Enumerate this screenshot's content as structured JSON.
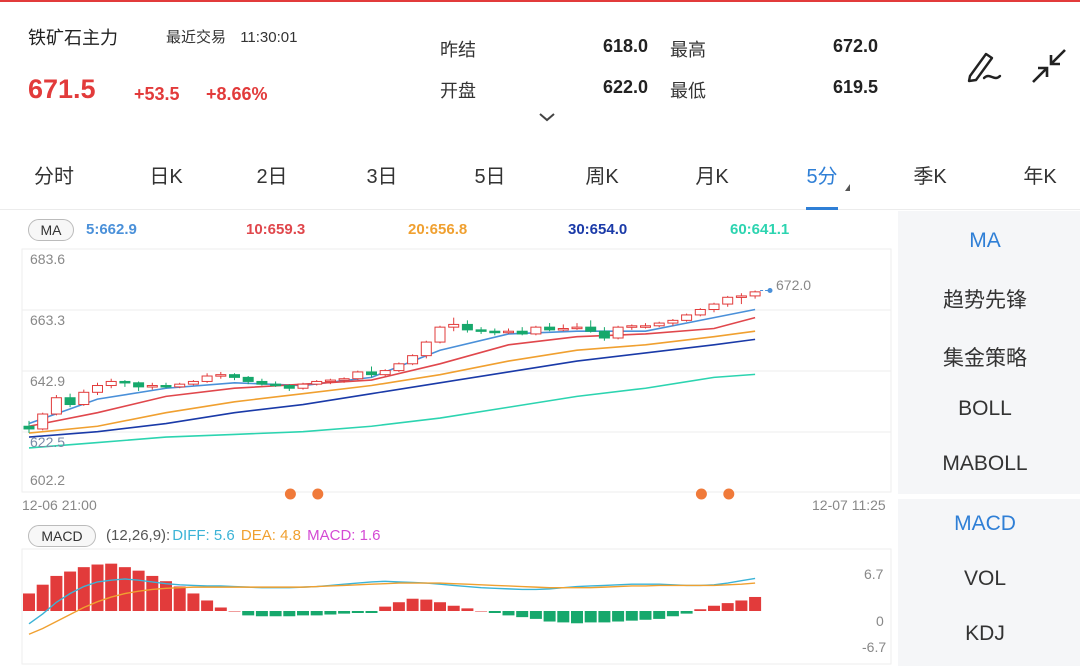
{
  "header": {
    "title": "铁矿石主力",
    "recent_label": "最近交易",
    "time": "11:30:01",
    "price": "671.5",
    "change": "+53.5",
    "change_pct": "+8.66%",
    "stats": {
      "prev_settle_label": "昨结",
      "prev_settle": "618.0",
      "open_label": "开盘",
      "open": "622.0",
      "high_label": "最高",
      "high": "672.0",
      "low_label": "最低",
      "low": "619.5"
    }
  },
  "tabs": [
    "分时",
    "日K",
    "2日",
    "3日",
    "5日",
    "周K",
    "月K",
    "5分",
    "季K",
    "年K"
  ],
  "active_tab": "5分",
  "indicator_panel": {
    "main": [
      "MA",
      "趋势先锋",
      "集金策略",
      "BOLL",
      "MABOLL"
    ],
    "sub": [
      "MACD",
      "VOL",
      "KDJ"
    ],
    "active_main": "MA",
    "active_sub": "MACD"
  },
  "ma_legend": {
    "badge": "MA",
    "ma5": "5:662.9",
    "ma10": "10:659.3",
    "ma20": "20:656.8",
    "ma30": "30:654.0",
    "ma60": "60:641.1"
  },
  "colors": {
    "up": "#e23b3b",
    "down": "#16a86c",
    "ma5": "#4a90d9",
    "ma10": "#e0474c",
    "ma20": "#f0a030",
    "ma30": "#1a3aa8",
    "ma60": "#2cd4b0",
    "accent": "#2f7fd6"
  },
  "price_axis": {
    "ticks": [
      "683.6",
      "663.3",
      "642.9",
      "602.2"
    ],
    "overlap_label": "622.5",
    "last_label": "672.0",
    "time_start": "12-06 21:00",
    "time_end": "12-07 11:25"
  },
  "macd": {
    "badge": "MACD",
    "params": "(12,26,9):",
    "diff": "DIFF: 5.6",
    "dea": "DEA: 4.8",
    "macd": "MACD: 1.6",
    "axis": [
      "6.7",
      "0",
      "-6.7"
    ]
  },
  "chart_data": {
    "type": "candlestick",
    "interval": "5分",
    "candles": [
      [
        622.0,
        624.0,
        619.5,
        621.0
      ],
      [
        621.0,
        627.0,
        620.5,
        626.5
      ],
      [
        626.5,
        633.5,
        626.0,
        632.5
      ],
      [
        632.5,
        634.0,
        629.0,
        630.0
      ],
      [
        630.0,
        635.5,
        629.5,
        634.5
      ],
      [
        634.5,
        638.0,
        633.5,
        637.0
      ],
      [
        637.0,
        639.5,
        636.0,
        638.5
      ],
      [
        638.5,
        639.0,
        636.5,
        638.0
      ],
      [
        638.0,
        638.5,
        635.0,
        636.5
      ],
      [
        636.5,
        638.0,
        635.5,
        637.0
      ],
      [
        637.0,
        638.0,
        636.0,
        636.5
      ],
      [
        636.5,
        638.0,
        636.0,
        637.5
      ],
      [
        637.5,
        639.0,
        637.0,
        638.5
      ],
      [
        638.5,
        641.5,
        638.0,
        640.5
      ],
      [
        640.5,
        642.0,
        639.5,
        641.0
      ],
      [
        641.0,
        641.5,
        639.0,
        640.0
      ],
      [
        640.0,
        640.5,
        637.5,
        638.5
      ],
      [
        638.5,
        639.5,
        637.0,
        637.5
      ],
      [
        637.5,
        638.5,
        636.5,
        637.0
      ],
      [
        637.0,
        637.5,
        635.0,
        636.0
      ],
      [
        636.0,
        638.0,
        635.5,
        637.5
      ],
      [
        637.5,
        639.0,
        637.0,
        638.5
      ],
      [
        638.5,
        639.5,
        637.5,
        639.0
      ],
      [
        639.0,
        640.0,
        638.0,
        639.5
      ],
      [
        639.5,
        642.5,
        639.0,
        642.0
      ],
      [
        642.0,
        644.0,
        640.0,
        641.0
      ],
      [
        641.0,
        643.0,
        640.5,
        642.5
      ],
      [
        642.5,
        645.5,
        642.0,
        645.0
      ],
      [
        645.0,
        648.5,
        644.5,
        648.0
      ],
      [
        648.0,
        653.5,
        647.0,
        653.0
      ],
      [
        653.0,
        659.0,
        652.5,
        658.5
      ],
      [
        658.5,
        662.0,
        657.0,
        659.5
      ],
      [
        659.5,
        661.0,
        656.5,
        657.5
      ],
      [
        657.5,
        658.5,
        656.0,
        657.0
      ],
      [
        657.0,
        658.0,
        655.5,
        656.5
      ],
      [
        656.5,
        658.0,
        656.0,
        657.0
      ],
      [
        657.0,
        658.5,
        655.5,
        656.0
      ],
      [
        656.0,
        659.0,
        655.5,
        658.5
      ],
      [
        658.5,
        660.0,
        657.0,
        657.5
      ],
      [
        657.5,
        659.5,
        657.0,
        658.0
      ],
      [
        658.0,
        660.0,
        657.5,
        658.5
      ],
      [
        658.5,
        661.0,
        656.5,
        657.0
      ],
      [
        657.0,
        658.5,
        653.5,
        654.5
      ],
      [
        654.5,
        659.0,
        654.0,
        658.5
      ],
      [
        658.5,
        659.5,
        657.5,
        659.0
      ],
      [
        659.0,
        660.0,
        658.0,
        659.0
      ],
      [
        659.0,
        660.5,
        658.5,
        660.0
      ],
      [
        660.0,
        661.5,
        659.0,
        661.0
      ],
      [
        661.0,
        663.5,
        660.5,
        663.0
      ],
      [
        663.0,
        665.5,
        662.5,
        665.0
      ],
      [
        665.0,
        667.5,
        664.0,
        667.0
      ],
      [
        667.0,
        670.0,
        666.0,
        669.5
      ],
      [
        669.5,
        671.0,
        667.0,
        670.0
      ],
      [
        670.0,
        672.0,
        669.0,
        671.5
      ]
    ],
    "ma_series": {
      "ma5": [
        [
          0,
          623
        ],
        [
          5,
          632
        ],
        [
          10,
          636
        ],
        [
          15,
          638
        ],
        [
          20,
          637
        ],
        [
          25,
          640
        ],
        [
          30,
          650
        ],
        [
          35,
          656
        ],
        [
          40,
          657
        ],
        [
          45,
          657
        ],
        [
          50,
          662
        ],
        [
          53,
          665
        ]
      ],
      "ma10": [
        [
          0,
          622
        ],
        [
          5,
          627
        ],
        [
          10,
          633
        ],
        [
          15,
          636
        ],
        [
          20,
          637.5
        ],
        [
          25,
          639
        ],
        [
          30,
          645
        ],
        [
          35,
          652
        ],
        [
          40,
          655
        ],
        [
          45,
          656
        ],
        [
          50,
          658
        ],
        [
          53,
          662
        ]
      ],
      "ma20": [
        [
          0,
          619.5
        ],
        [
          5,
          622
        ],
        [
          10,
          627
        ],
        [
          15,
          631
        ],
        [
          20,
          634
        ],
        [
          25,
          637
        ],
        [
          30,
          641
        ],
        [
          35,
          646
        ],
        [
          40,
          650
        ],
        [
          45,
          652
        ],
        [
          50,
          655
        ],
        [
          53,
          657
        ]
      ],
      "ma30": [
        [
          0,
          618
        ],
        [
          5,
          620
        ],
        [
          10,
          623
        ],
        [
          15,
          627
        ],
        [
          20,
          630
        ],
        [
          25,
          634
        ],
        [
          30,
          638
        ],
        [
          35,
          642
        ],
        [
          40,
          646
        ],
        [
          45,
          649
        ],
        [
          50,
          652
        ],
        [
          53,
          654
        ]
      ],
      "ma60": [
        [
          0,
          614
        ],
        [
          5,
          616
        ],
        [
          10,
          618
        ],
        [
          15,
          619
        ],
        [
          20,
          620
        ],
        [
          25,
          622
        ],
        [
          30,
          625
        ],
        [
          35,
          629
        ],
        [
          40,
          633
        ],
        [
          45,
          636
        ],
        [
          50,
          640
        ],
        [
          53,
          641.1
        ]
      ]
    },
    "signal_markers": [
      12,
      14,
      42,
      44
    ],
    "macd_hist": [
      2.0,
      3.0,
      4.0,
      4.5,
      5.0,
      5.3,
      5.4,
      5.0,
      4.6,
      4.0,
      3.4,
      2.8,
      2.0,
      1.2,
      0.4,
      0,
      -0.5,
      -0.6,
      -0.6,
      -0.6,
      -0.5,
      -0.5,
      -0.4,
      -0.3,
      -0.2,
      -0.1,
      0.5,
      1.0,
      1.4,
      1.3,
      1.0,
      0.6,
      0.3,
      0,
      -0.2,
      -0.5,
      -0.7,
      -0.9,
      -1.2,
      -1.3,
      -1.4,
      -1.3,
      -1.3,
      -1.2,
      -1.1,
      -1.0,
      -0.9,
      -0.6,
      -0.3,
      0.2,
      0.6,
      0.9,
      1.2,
      1.6
    ],
    "macd_diff": [
      -2.2,
      -0.5,
      1.5,
      3.0,
      4.2,
      5.0,
      5.3,
      5.5,
      5.3,
      5.0,
      4.7,
      4.5,
      4.4,
      4.3,
      4.3,
      4.2,
      4.1,
      4.0,
      4.0,
      4.0,
      4.1,
      4.2,
      4.4,
      4.6,
      4.8,
      5.0,
      5.1,
      5.0,
      4.9,
      4.8,
      4.6,
      4.4,
      4.2,
      4.0,
      3.9,
      3.8,
      3.7,
      3.7,
      3.8,
      4.0,
      4.2,
      4.3,
      4.4,
      4.5,
      4.6,
      4.6,
      4.6,
      4.5,
      4.4,
      4.4,
      4.5,
      4.8,
      5.2,
      5.6
    ],
    "macd_dea": [
      -4.0,
      -3.0,
      -1.8,
      -0.6,
      0.6,
      1.6,
      2.4,
      3.0,
      3.4,
      3.7,
      3.9,
      4.0,
      4.1,
      4.1,
      4.1,
      4.1,
      4.1,
      4.1,
      4.1,
      4.1,
      4.1,
      4.2,
      4.3,
      4.4,
      4.5,
      4.6,
      4.7,
      4.8,
      4.8,
      4.8,
      4.8,
      4.7,
      4.6,
      4.5,
      4.4,
      4.3,
      4.2,
      4.1,
      4.0,
      4.0,
      4.0,
      4.0,
      4.1,
      4.2,
      4.3,
      4.3,
      4.4,
      4.4,
      4.4,
      4.4,
      4.4,
      4.5,
      4.6,
      4.8
    ],
    "price_range": [
      602.2,
      683.6
    ],
    "macd_range": [
      -6.7,
      6.7
    ]
  }
}
